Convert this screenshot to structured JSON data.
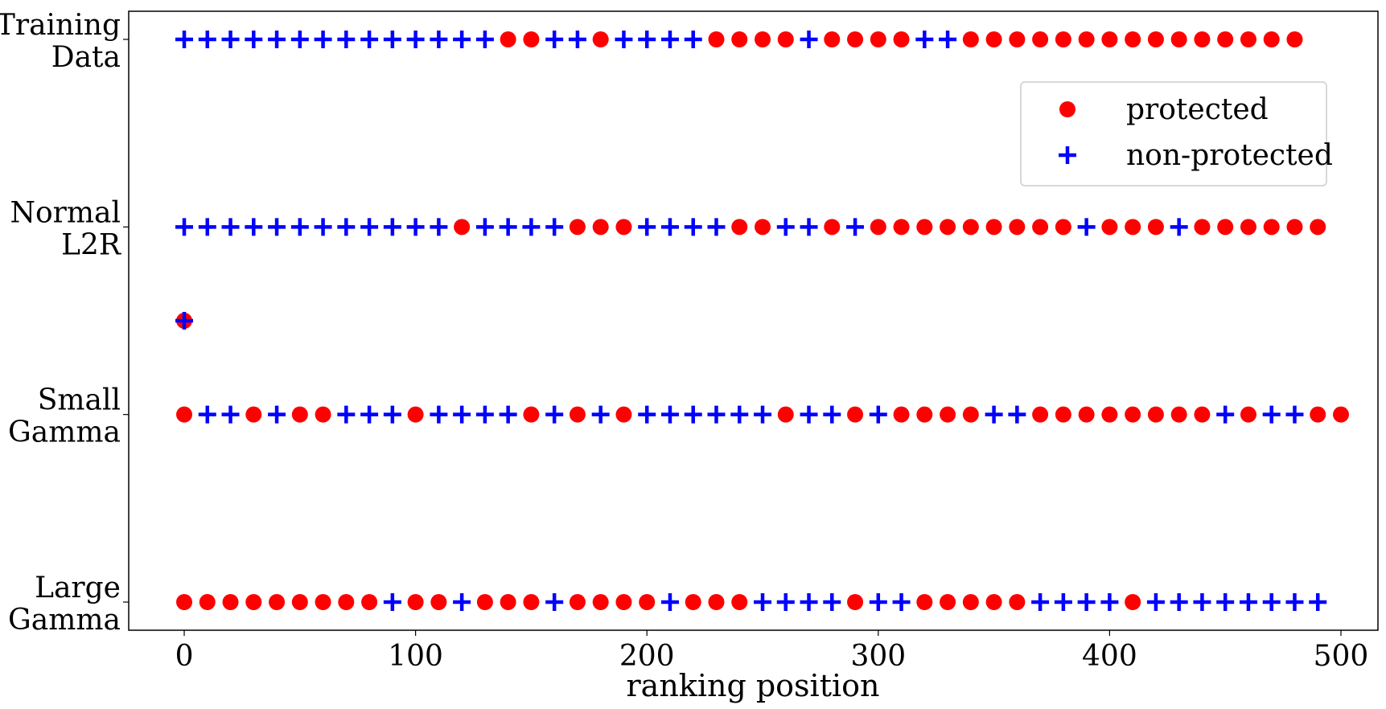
{
  "chart_data": {
    "type": "scatter",
    "xlabel": "ranking position",
    "ylabel": "",
    "xlim": [
      -24,
      516
    ],
    "x_ticks": [
      0,
      100,
      200,
      300,
      400,
      500
    ],
    "x_tick_labels": [
      "0",
      "100",
      "200",
      "300",
      "400",
      "500"
    ],
    "rows": [
      {
        "label_lines": [
          "Training",
          "Data"
        ],
        "y": 3.0,
        "sequence": "NNNNNNNNNNNNNNPPNNPNNNNPPPPNPPPPNNPPPPPPPPPPPPPPP"
      },
      {
        "label_lines": [
          "Normal",
          "L2R"
        ],
        "y": 2.0,
        "sequence": "NNNNNNNNNNNNPNNNNPPPNNNNPPNNPNPPPPPPPPPNPPPNPPPPPP"
      },
      {
        "label_lines": [
          "Small",
          "Gamma"
        ],
        "y": 1.0,
        "sequence": "PNNPNPPNNNPNNNNPNPNPNNNNNNPNNPNPPPPNNPPPPPPPPNPNNPP"
      },
      {
        "label_lines": [
          "Large",
          "Gamma"
        ],
        "y": 0.0,
        "sequence": "PPPPPPPPPNPPNPPPNPPPPNPPPNNNNPNNPPPPPNNNNPNNNNNNNN"
      }
    ],
    "stray_points": [
      {
        "series": "protected",
        "x": 0,
        "y": 1.5
      },
      {
        "series": "non-protected",
        "x": 0,
        "y": 1.5
      }
    ],
    "ylim": [
      -0.15,
      3.15
    ],
    "series": [
      {
        "name": "protected",
        "code": "P",
        "marker": "circle",
        "color": "#ff0000"
      },
      {
        "name": "non-protected",
        "code": "N",
        "marker": "plus",
        "color": "#0000ff"
      }
    ],
    "spacing": 10,
    "legend_position": "upper-right",
    "grid": false
  }
}
